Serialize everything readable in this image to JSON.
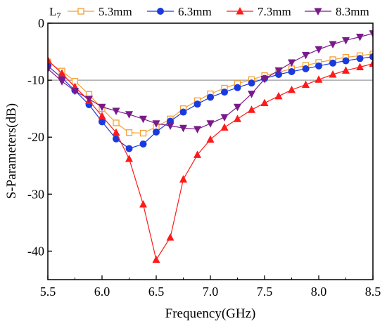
{
  "chart_data": {
    "type": "line",
    "xlabel": "Frequency(GHz)",
    "ylabel": "S-Parameters(dB)",
    "xlim": [
      5.5,
      8.5
    ],
    "ylim": [
      -45,
      0
    ],
    "x_ticks": [
      5.5,
      6.0,
      6.5,
      7.0,
      7.5,
      8.0,
      8.5
    ],
    "x_tick_labels": [
      "5.5",
      "6.0",
      "6.5",
      "7.0",
      "7.5",
      "8.0",
      "8.5"
    ],
    "y_ticks": [
      0,
      -10,
      -20,
      -30,
      -40
    ],
    "y_tick_labels": [
      "0",
      "-10",
      "-20",
      "-30",
      "-40"
    ],
    "reference_line_y": -10,
    "grid": false,
    "legend_title": "L7",
    "legend_placement": "top",
    "series": [
      {
        "name": "5.3mm",
        "color": "#f5a030",
        "marker": "square-open",
        "x": [
          5.5,
          5.63,
          5.75,
          5.88,
          6.0,
          6.13,
          6.25,
          6.38,
          6.5,
          6.63,
          6.75,
          6.88,
          7.0,
          7.13,
          7.25,
          7.38,
          7.5,
          7.63,
          7.75,
          7.88,
          8.0,
          8.13,
          8.25,
          8.38,
          8.5
        ],
        "y": [
          -6.8,
          -8.4,
          -10.2,
          -12.5,
          -15.0,
          -17.5,
          -19.2,
          -19.3,
          -18.2,
          -16.8,
          -15.0,
          -13.6,
          -12.4,
          -11.4,
          -10.6,
          -9.9,
          -9.2,
          -8.6,
          -8.0,
          -7.4,
          -6.9,
          -6.4,
          -6.0,
          -5.7,
          -5.4
        ]
      },
      {
        "name": "6.3mm",
        "color": "#1a3ae0",
        "marker": "circle",
        "x": [
          5.5,
          5.63,
          5.75,
          5.88,
          6.0,
          6.13,
          6.25,
          6.38,
          6.5,
          6.63,
          6.75,
          6.88,
          7.0,
          7.13,
          7.25,
          7.38,
          7.5,
          7.63,
          7.75,
          7.88,
          8.0,
          8.13,
          8.25,
          8.38,
          8.5
        ],
        "y": [
          -7.5,
          -9.6,
          -11.8,
          -14.3,
          -17.3,
          -20.3,
          -22.0,
          -21.2,
          -19.1,
          -17.2,
          -15.6,
          -14.2,
          -13.0,
          -12.1,
          -11.3,
          -10.5,
          -9.7,
          -9.0,
          -8.5,
          -8.0,
          -7.5,
          -7.0,
          -6.6,
          -6.2,
          -5.9
        ]
      },
      {
        "name": "7.3mm",
        "color": "#ff1a1a",
        "marker": "triangle-up",
        "x": [
          5.5,
          5.63,
          5.75,
          5.88,
          6.0,
          6.13,
          6.25,
          6.38,
          6.5,
          6.63,
          6.75,
          6.88,
          7.0,
          7.13,
          7.25,
          7.38,
          7.5,
          7.63,
          7.75,
          7.88,
          8.0,
          8.13,
          8.25,
          8.38,
          8.5
        ],
        "y": [
          -6.5,
          -8.8,
          -11.2,
          -13.6,
          -16.3,
          -19.2,
          -23.8,
          -31.8,
          -41.5,
          -37.6,
          -27.4,
          -23.1,
          -20.4,
          -18.3,
          -16.8,
          -15.2,
          -14.0,
          -12.8,
          -11.7,
          -10.8,
          -9.9,
          -9.0,
          -8.3,
          -7.7,
          -7.1
        ]
      },
      {
        "name": "8.3mm",
        "color": "#7a1a8a",
        "marker": "triangle-down",
        "x": [
          5.5,
          5.63,
          5.75,
          5.88,
          6.0,
          6.13,
          6.25,
          6.38,
          6.5,
          6.63,
          6.75,
          6.88,
          7.0,
          7.13,
          7.25,
          7.38,
          7.5,
          7.63,
          7.75,
          7.88,
          8.0,
          8.13,
          8.25,
          8.38,
          8.5
        ],
        "y": [
          -8.0,
          -10.2,
          -11.9,
          -13.3,
          -14.7,
          -15.4,
          -16.0,
          -16.8,
          -17.6,
          -18.0,
          -18.4,
          -18.6,
          -17.6,
          -16.5,
          -14.7,
          -12.4,
          -9.8,
          -8.3,
          -6.9,
          -5.6,
          -4.6,
          -3.7,
          -3.0,
          -2.4,
          -1.8
        ]
      }
    ]
  }
}
